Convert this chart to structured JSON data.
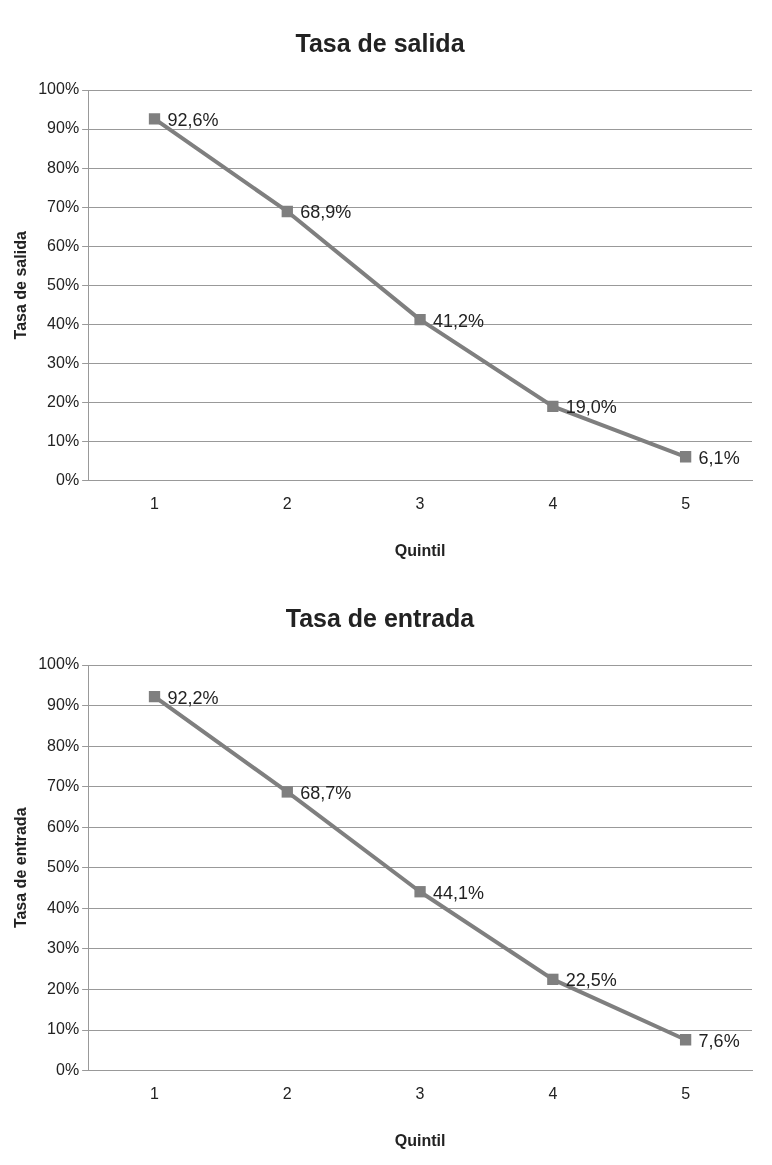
{
  "chart_data": [
    {
      "type": "line",
      "title": "Tasa de salida",
      "xlabel": "Quintil",
      "ylabel": "Tasa de salida",
      "categories": [
        "1",
        "2",
        "3",
        "4",
        "5"
      ],
      "series": [
        {
          "color": "#7f7f7f",
          "values": [
            92.6,
            68.9,
            41.2,
            19.0,
            6.1
          ],
          "value_labels": [
            "92,6%",
            "68,9%",
            "41,2%",
            "19,0%",
            "6,1%"
          ]
        }
      ],
      "ylim": [
        0,
        100
      ],
      "yticks": [
        {
          "value": 0,
          "label": "0%"
        },
        {
          "value": 10,
          "label": "10%"
        },
        {
          "value": 20,
          "label": "20%"
        },
        {
          "value": 30,
          "label": "30%"
        },
        {
          "value": 40,
          "label": "40%"
        },
        {
          "value": 50,
          "label": "50%"
        },
        {
          "value": 60,
          "label": "60%"
        },
        {
          "value": 70,
          "label": "70%"
        },
        {
          "value": 80,
          "label": "80%"
        },
        {
          "value": 90,
          "label": "90%"
        },
        {
          "value": 100,
          "label": "100%"
        }
      ],
      "grid": "y",
      "legend": false,
      "marker": "square",
      "line_style": "solid"
    },
    {
      "type": "line",
      "title": "Tasa de entrada",
      "xlabel": "Quintil",
      "ylabel": "Tasa de entrada",
      "categories": [
        "1",
        "2",
        "3",
        "4",
        "5"
      ],
      "series": [
        {
          "color": "#7f7f7f",
          "values": [
            92.2,
            68.7,
            44.1,
            22.5,
            7.6
          ],
          "value_labels": [
            "92,2%",
            "68,7%",
            "44,1%",
            "22,5%",
            "7,6%"
          ]
        }
      ],
      "ylim": [
        0,
        100
      ],
      "yticks": [
        {
          "value": 0,
          "label": "0%"
        },
        {
          "value": 10,
          "label": "10%"
        },
        {
          "value": 20,
          "label": "20%"
        },
        {
          "value": 30,
          "label": "30%"
        },
        {
          "value": 40,
          "label": "40%"
        },
        {
          "value": 50,
          "label": "50%"
        },
        {
          "value": 60,
          "label": "60%"
        },
        {
          "value": 70,
          "label": "70%"
        },
        {
          "value": 80,
          "label": "80%"
        },
        {
          "value": 90,
          "label": "90%"
        },
        {
          "value": 100,
          "label": "100%"
        }
      ],
      "grid": "y",
      "legend": false,
      "marker": "square",
      "line_style": "solid"
    }
  ]
}
